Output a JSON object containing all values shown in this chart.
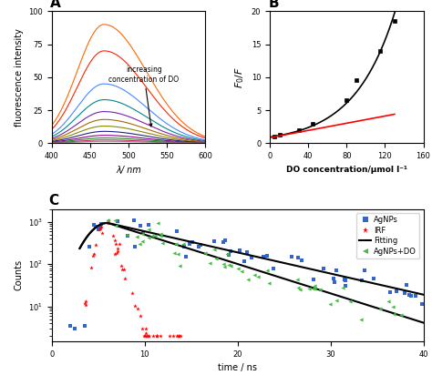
{
  "panel_A": {
    "label": "A",
    "xlabel": "λ/ nm",
    "ylabel": "fluorescence intensity",
    "xlim": [
      400,
      600
    ],
    "ylim": [
      0,
      100
    ],
    "xticks": [
      400,
      450,
      500,
      550,
      600
    ],
    "yticks": [
      0,
      25,
      50,
      75,
      100
    ],
    "annotation": "increasing\nconcentration of DO",
    "curves": [
      {
        "peak": 468,
        "height": 90,
        "color": "#FF6600",
        "sigma_l": 35,
        "sigma_r": 55
      },
      {
        "peak": 468,
        "height": 70,
        "color": "#FF2200",
        "sigma_l": 35,
        "sigma_r": 55
      },
      {
        "peak": 468,
        "height": 45,
        "color": "#4488FF",
        "sigma_l": 35,
        "sigma_r": 55
      },
      {
        "peak": 468,
        "height": 33,
        "color": "#008888",
        "sigma_l": 35,
        "sigma_r": 55
      },
      {
        "peak": 468,
        "height": 24,
        "color": "#7722AA",
        "sigma_l": 35,
        "sigma_r": 55
      },
      {
        "peak": 468,
        "height": 18,
        "color": "#AA6600",
        "sigma_l": 35,
        "sigma_r": 55
      },
      {
        "peak": 468,
        "height": 13,
        "color": "#888800",
        "sigma_l": 35,
        "sigma_r": 55
      },
      {
        "peak": 468,
        "height": 9,
        "color": "#222288",
        "sigma_l": 35,
        "sigma_r": 55
      },
      {
        "peak": 468,
        "height": 6,
        "color": "#880088",
        "sigma_l": 35,
        "sigma_r": 55
      },
      {
        "peak": 468,
        "height": 4,
        "color": "#228822",
        "sigma_l": 35,
        "sigma_r": 55
      },
      {
        "peak": 468,
        "height": 2.5,
        "color": "#CC2266",
        "sigma_l": 35,
        "sigma_r": 55
      },
      {
        "peak": 468,
        "height": 1.5,
        "color": "#888888",
        "sigma_l": 35,
        "sigma_r": 55
      }
    ]
  },
  "panel_B": {
    "label": "B",
    "xlabel": "DO concentration/μmol l⁻¹",
    "ylabel": "$F_0/F$",
    "xlim": [
      0,
      160
    ],
    "ylim": [
      0,
      20
    ],
    "xticks": [
      0,
      40,
      80,
      120,
      160
    ],
    "yticks": [
      0,
      5,
      10,
      15,
      20
    ],
    "data_x": [
      5,
      10,
      30,
      45,
      80,
      90,
      115,
      130
    ],
    "data_y": [
      1.05,
      1.35,
      2.0,
      3.0,
      6.5,
      9.5,
      14.0,
      18.5
    ],
    "red_line_x": [
      0,
      130
    ],
    "red_line_y": [
      0.85,
      4.4
    ],
    "exp_a": 0.93,
    "exp_b": 0.0235
  },
  "panel_C": {
    "label": "C",
    "xlabel": "time / ns",
    "ylabel": "Counts",
    "xlim": [
      0,
      40
    ],
    "xticks": [
      0,
      10,
      20,
      30,
      40
    ],
    "t_peak": 6.0,
    "decay_agnps": 0.115,
    "decay_do": 0.16,
    "legend_labels": [
      "AgNPs",
      "IRF",
      "Fitting",
      "AgNPs+DO"
    ],
    "legend_colors": [
      "#3366CC",
      "#FF0000",
      "#000000",
      "#44BB44"
    ],
    "seed": 12
  }
}
